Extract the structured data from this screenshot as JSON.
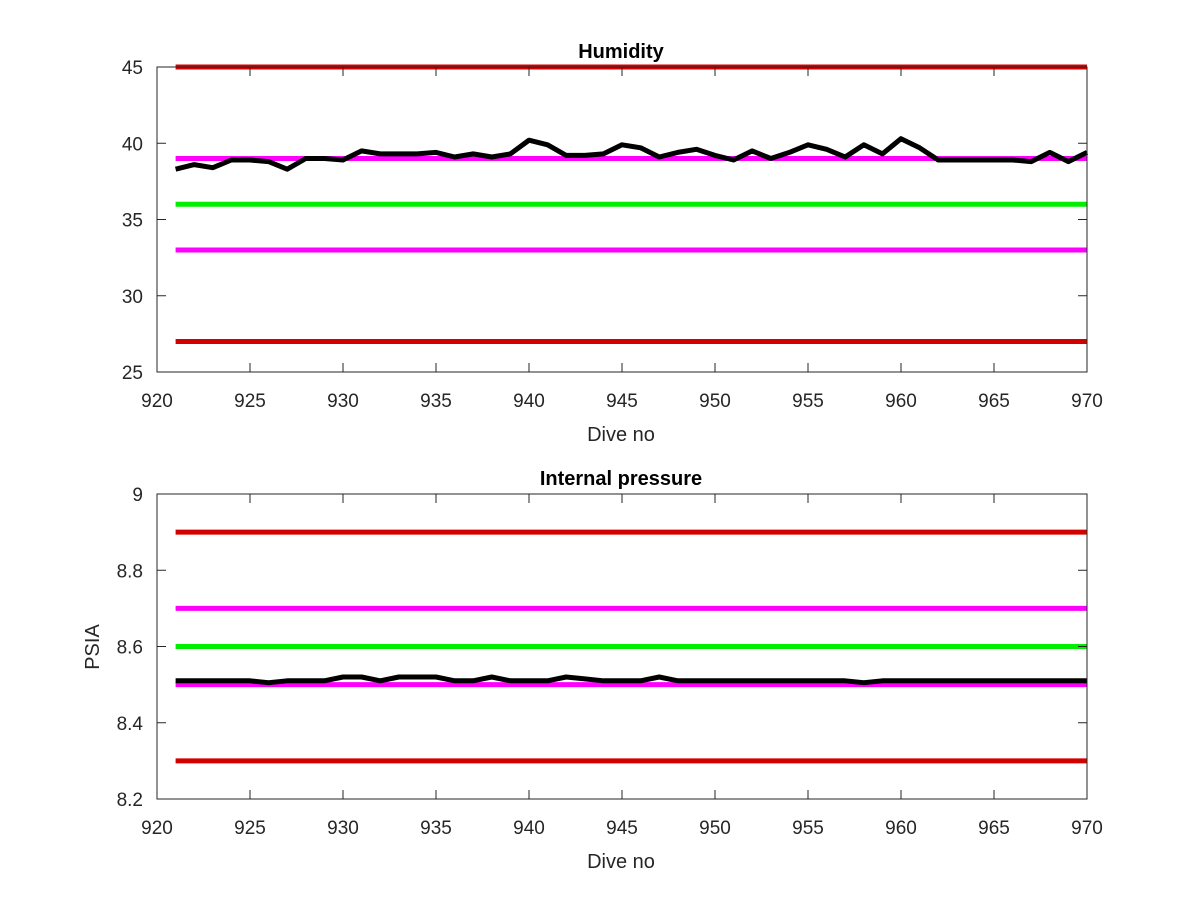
{
  "chart_data": [
    {
      "type": "line",
      "title": "Humidity",
      "xlabel": "Dive no",
      "ylabel": "",
      "xlim": [
        920,
        970
      ],
      "ylim": [
        25,
        45
      ],
      "x_ticks": [
        920,
        925,
        930,
        935,
        940,
        945,
        950,
        955,
        960,
        965,
        970
      ],
      "y_ticks": [
        25,
        30,
        35,
        40,
        45
      ],
      "grid": false,
      "series": [
        {
          "color": "#000000",
          "x": [
            921,
            922,
            923,
            924,
            925,
            926,
            927,
            928,
            929,
            930,
            931,
            932,
            933,
            934,
            935,
            936,
            937,
            938,
            939,
            940,
            941,
            942,
            943,
            944,
            945,
            946,
            947,
            948,
            949,
            950,
            951,
            952,
            953,
            954,
            955,
            956,
            957,
            958,
            959,
            960,
            961,
            962,
            963,
            964,
            965,
            966,
            967,
            968,
            969,
            970
          ],
          "values": [
            38.3,
            38.6,
            38.4,
            38.9,
            38.9,
            38.8,
            38.3,
            39.0,
            39.0,
            38.9,
            39.5,
            39.3,
            39.3,
            39.3,
            39.4,
            39.1,
            39.3,
            39.1,
            39.3,
            40.2,
            39.9,
            39.2,
            39.2,
            39.3,
            39.9,
            39.7,
            39.1,
            39.4,
            39.6,
            39.2,
            38.9,
            39.5,
            39.0,
            39.4,
            39.9,
            39.6,
            39.1,
            39.9,
            39.3,
            40.3,
            39.7,
            38.9,
            38.9,
            38.9,
            38.9,
            38.9,
            38.8,
            39.4,
            38.8,
            39.4
          ]
        }
      ],
      "reference_lines": [
        {
          "color": "#d40000",
          "y": 45
        },
        {
          "color": "#ff00ff",
          "y": 39
        },
        {
          "color": "#00ee00",
          "y": 36
        },
        {
          "color": "#ff00ff",
          "y": 33
        },
        {
          "color": "#d40000",
          "y": 27
        }
      ]
    },
    {
      "type": "line",
      "title": "Internal pressure",
      "xlabel": "Dive no",
      "ylabel": "PSIA",
      "xlim": [
        920,
        970
      ],
      "ylim": [
        8.2,
        9
      ],
      "x_ticks": [
        920,
        925,
        930,
        935,
        940,
        945,
        950,
        955,
        960,
        965,
        970
      ],
      "y_ticks": [
        "8.2",
        "8.4",
        "8.6",
        "8.8",
        "9"
      ],
      "grid": false,
      "series": [
        {
          "color": "#000000",
          "x": [
            921,
            922,
            923,
            924,
            925,
            926,
            927,
            928,
            929,
            930,
            931,
            932,
            933,
            934,
            935,
            936,
            937,
            938,
            939,
            940,
            941,
            942,
            943,
            944,
            945,
            946,
            947,
            948,
            949,
            950,
            951,
            952,
            953,
            954,
            955,
            956,
            957,
            958,
            959,
            960,
            961,
            962,
            963,
            964,
            965,
            966,
            967,
            968,
            969,
            970
          ],
          "values": [
            8.51,
            8.51,
            8.51,
            8.51,
            8.51,
            8.505,
            8.51,
            8.51,
            8.51,
            8.52,
            8.52,
            8.51,
            8.52,
            8.52,
            8.52,
            8.51,
            8.51,
            8.52,
            8.51,
            8.51,
            8.51,
            8.52,
            8.515,
            8.51,
            8.51,
            8.51,
            8.52,
            8.51,
            8.51,
            8.51,
            8.51,
            8.51,
            8.51,
            8.51,
            8.51,
            8.51,
            8.51,
            8.505,
            8.51,
            8.51,
            8.51,
            8.51,
            8.51,
            8.51,
            8.51,
            8.51,
            8.51,
            8.51,
            8.51,
            8.51
          ]
        }
      ],
      "reference_lines": [
        {
          "color": "#d40000",
          "y": 8.9
        },
        {
          "color": "#ff00ff",
          "y": 8.7
        },
        {
          "color": "#00ee00",
          "y": 8.6
        },
        {
          "color": "#ff00ff",
          "y": 8.5
        },
        {
          "color": "#d40000",
          "y": 8.3
        }
      ]
    }
  ]
}
